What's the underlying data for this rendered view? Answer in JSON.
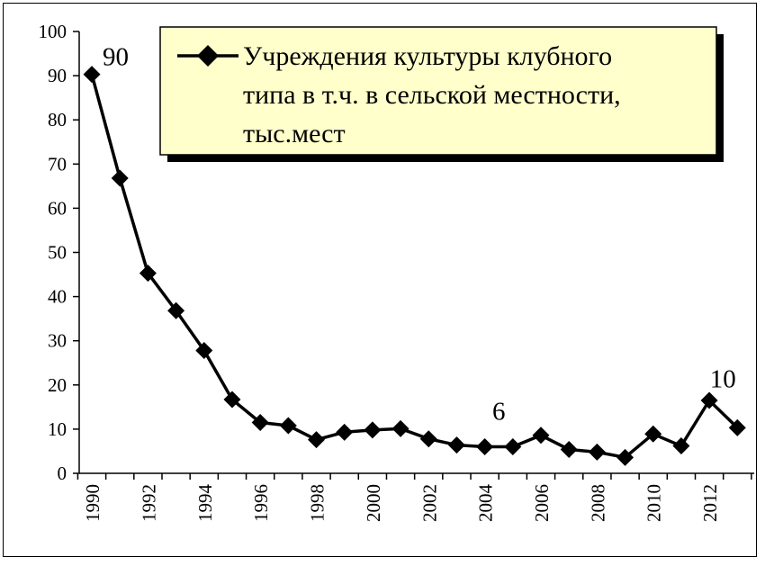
{
  "chart_data": {
    "type": "line",
    "title": "",
    "xlabel": "",
    "ylabel": "",
    "ylim": [
      0,
      100
    ],
    "y_ticks": [
      "0",
      "10",
      "20",
      "30",
      "40",
      "50",
      "60",
      "70",
      "80",
      "90",
      "100"
    ],
    "x_tick_labels": [
      "1990",
      "1992",
      "1994",
      "1996",
      "1998",
      "2000",
      "2002",
      "2004",
      "2006",
      "2008",
      "2010",
      "2012"
    ],
    "grid": false,
    "legend_position": "top-right",
    "series": [
      {
        "name": "Учреждения культуры клубного типа в т.ч. в сельской местности, тыс.мест",
        "legend_lines": [
          "Учреждения культуры клубного",
          "типа в т.ч. в сельской местности,",
          "тыс.мест"
        ],
        "color": "#000000",
        "marker": "diamond",
        "x": [
          1990,
          1991,
          1992,
          1993,
          1994,
          1995,
          1996,
          1997,
          1998,
          1999,
          2000,
          2001,
          2002,
          2003,
          2004,
          2005,
          2006,
          2007,
          2008,
          2009,
          2010,
          2011,
          2012,
          2013
        ],
        "values": [
          90.3,
          66.8,
          45.3,
          36.8,
          27.8,
          16.7,
          11.5,
          10.8,
          7.6,
          9.3,
          9.8,
          10.1,
          7.8,
          6.4,
          6.0,
          6.0,
          8.6,
          5.4,
          4.8,
          3.6,
          8.9,
          6.2,
          16.5,
          10.3
        ]
      }
    ],
    "annotations": [
      {
        "text": "90",
        "x": 1990,
        "y": 90.3
      },
      {
        "text": "6",
        "x": 2004.5,
        "y": 6.0
      },
      {
        "text": "10",
        "x": 2013,
        "y": 10.3
      }
    ],
    "legend_background": "#ffffcc",
    "legend_shadow": "#000000"
  }
}
